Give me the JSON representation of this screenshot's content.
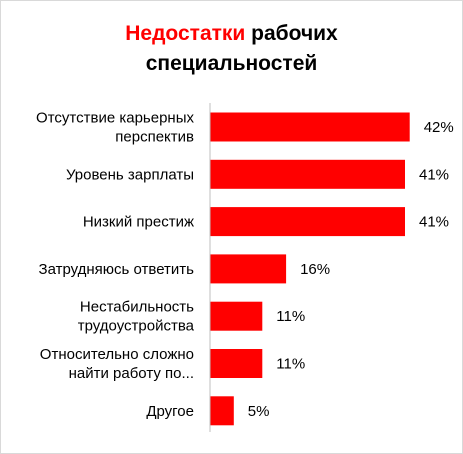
{
  "title": {
    "accent": "Недостатки",
    "rest_line1": " рабочих",
    "line2": "специальностей"
  },
  "colors": {
    "bar": "#ff0000",
    "accent_title": "#ff0000",
    "axis": "#bfbfbf"
  },
  "chart_data": {
    "type": "bar",
    "orientation": "horizontal",
    "categories": [
      [
        "Отсутствие карьерных",
        "перспектив"
      ],
      [
        "Уровень зарплаты"
      ],
      [
        "Низкий престиж"
      ],
      [
        "Затрудняюсь ответить"
      ],
      [
        "Нестабильность",
        "трудоустройства"
      ],
      [
        "Относительно сложно",
        "найти работу по..."
      ],
      [
        "Другое"
      ]
    ],
    "values": [
      42,
      41,
      41,
      16,
      11,
      11,
      5
    ],
    "value_labels": [
      "42%",
      "41%",
      "41%",
      "16%",
      "11%",
      "11%",
      "5%"
    ],
    "unit": "%",
    "xlim": [
      0,
      45
    ],
    "grid": false,
    "legend": "none"
  }
}
